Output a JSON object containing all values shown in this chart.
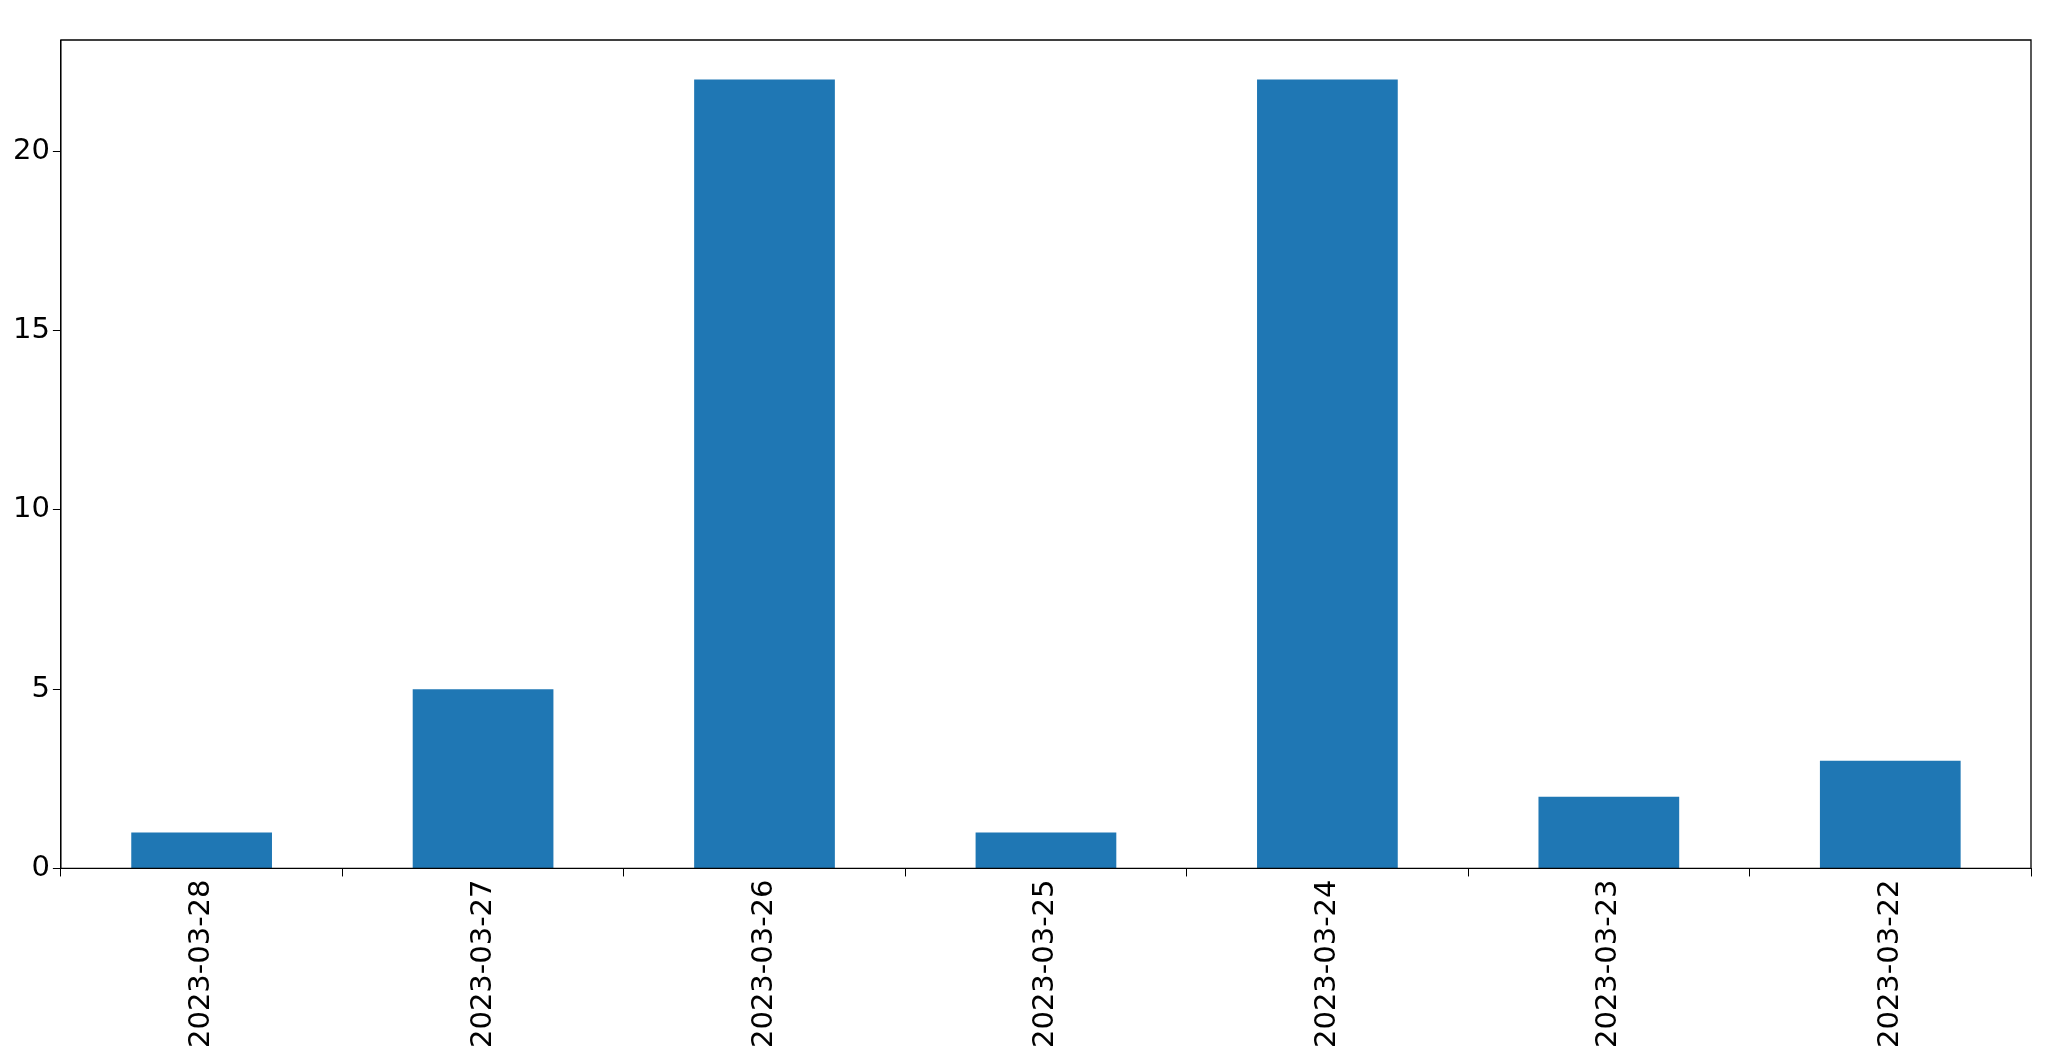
{
  "chart_data": {
    "type": "bar",
    "categories": [
      "2023-03-28",
      "2023-03-27",
      "2023-03-26",
      "2023-03-25",
      "2023-03-24",
      "2023-03-23",
      "2023-03-22"
    ],
    "values": [
      1,
      5,
      22,
      1,
      22,
      2,
      3
    ],
    "color": "#1f77b4",
    "ylim": [
      0,
      23.1
    ],
    "yticks": [
      0,
      5,
      10,
      15,
      20
    ],
    "grid": false,
    "legend": false
  }
}
